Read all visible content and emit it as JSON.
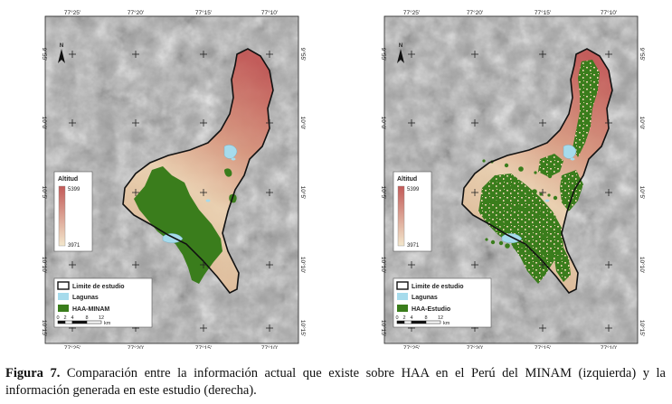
{
  "left_map": {
    "top_ticks": [
      "77°25'",
      "77°20'",
      "77°15'",
      "77°10'"
    ],
    "bottom_ticks": [
      "77°25'",
      "77°20'",
      "77°15'",
      "77°10'"
    ],
    "left_ticks": [
      "9°55'",
      "10°0'",
      "10°5'",
      "10°10'",
      "10°15'"
    ],
    "right_ticks": [
      "9°55'",
      "10°0'",
      "10°5'",
      "10°10'",
      "10°15'"
    ],
    "north": "N",
    "altitude_title": "Altitud",
    "altitude_max": "5399",
    "altitude_min": "3971",
    "legend_boundary": "Limite de estudio",
    "legend_lagunas": "Lagunas",
    "legend_haa": "HAA-MINAM",
    "scale_labels": [
      "0",
      "2",
      "4",
      "8",
      "12"
    ],
    "scale_unit": "km"
  },
  "right_map": {
    "top_ticks": [
      "77°25'",
      "77°20'",
      "77°15'",
      "77°10'"
    ],
    "bottom_ticks": [
      "77°25'",
      "77°20'",
      "77°15'",
      "77°10'"
    ],
    "left_ticks": [
      "9°55'",
      "10°0'",
      "10°5'",
      "10°10'",
      "10°15'"
    ],
    "right_ticks": [
      "9°55'",
      "10°0'",
      "10°5'",
      "10°10'",
      "10°15'"
    ],
    "north": "N",
    "altitude_title": "Altitud",
    "altitude_max": "5399",
    "altitude_min": "3971",
    "legend_boundary": "Limite de estudio",
    "legend_lagunas": "Lagunas",
    "legend_haa": "HAA-Estudio",
    "scale_labels": [
      "0",
      "2",
      "4",
      "8",
      "12"
    ],
    "scale_unit": "km"
  },
  "caption": {
    "label": "Figura 7.",
    "text": "Comparación entre la información actual que existe sobre HAA en el Perú del MINAM (izquierda) y la información generada en este estudio (derecha)."
  },
  "colors": {
    "haa_green": "#3a7d1c",
    "lagunas_blue": "#a6dbec",
    "altitude_high": "#c25a58",
    "altitude_low": "#f3e7cc",
    "hillshade": "#9a9a9a"
  }
}
